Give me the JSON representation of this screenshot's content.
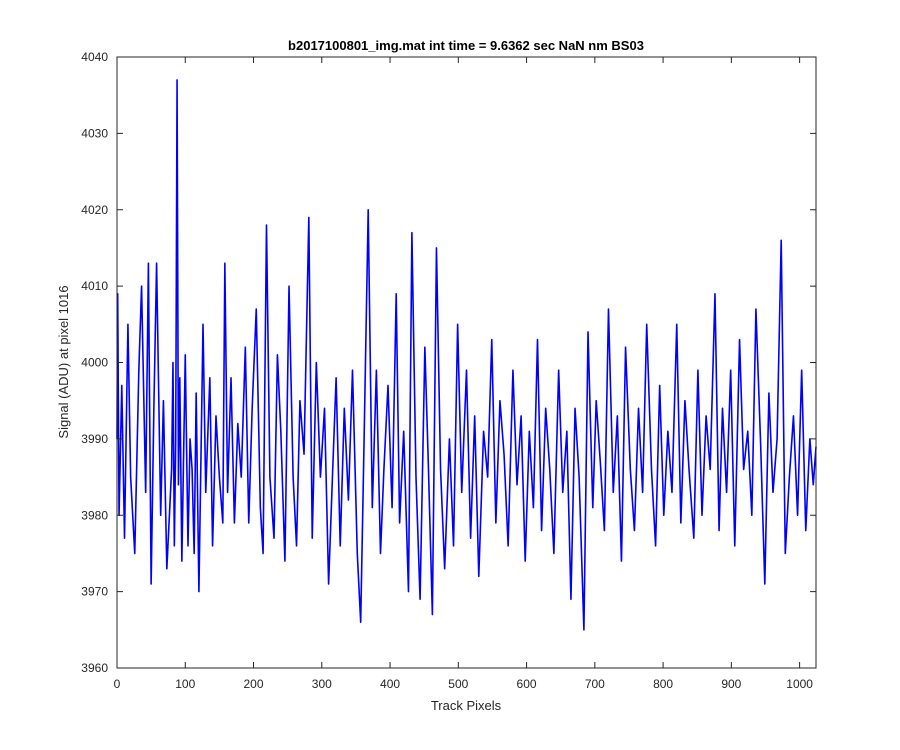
{
  "chart_data": {
    "type": "line",
    "title": "b2017100801_img.mat int time = 9.6362 sec  NaN nm BS03",
    "xlabel": "Track Pixels",
    "ylabel": "Signal (ADU) at pixel 1016",
    "xlim": [
      0,
      1024
    ],
    "ylim": [
      3960,
      4040
    ],
    "xticks": [
      0,
      100,
      200,
      300,
      400,
      500,
      600,
      700,
      800,
      900,
      1000
    ],
    "yticks": [
      3960,
      3970,
      3980,
      3990,
      4000,
      4010,
      4020,
      4030,
      4040
    ],
    "grid": false,
    "legend": "none",
    "series": [
      {
        "color": "#0000ff",
        "x": [
          0,
          1,
          3,
          7,
          11,
          16,
          20,
          26,
          32,
          36,
          42,
          46,
          50,
          54,
          58,
          64,
          68,
          73,
          80,
          82,
          84,
          86,
          88,
          90,
          92,
          95,
          100,
          104,
          107,
          110,
          113,
          116,
          120,
          126,
          130,
          136,
          140,
          145,
          150,
          155,
          158,
          162,
          167,
          172,
          177,
          182,
          188,
          193,
          198,
          204,
          210,
          214,
          219,
          224,
          230,
          235,
          240,
          246,
          252,
          258,
          263,
          268,
          274,
          281,
          286,
          292,
          298,
          304,
          310,
          316,
          321,
          327,
          333,
          339,
          345,
          352,
          357,
          362,
          368,
          374,
          380,
          386,
          391,
          397,
          403,
          409,
          414,
          420,
          427,
          432,
          438,
          444,
          451,
          456,
          462,
          468,
          474,
          480,
          487,
          493,
          499,
          505,
          512,
          518,
          524,
          530,
          537,
          543,
          549,
          555,
          561,
          567,
          573,
          580,
          586,
          592,
          598,
          604,
          610,
          616,
          622,
          628,
          634,
          640,
          647,
          653,
          659,
          665,
          671,
          677,
          684,
          690,
          697,
          702,
          708,
          714,
          720,
          727,
          733,
          739,
          745,
          752,
          758,
          764,
          770,
          776,
          783,
          789,
          795,
          801,
          807,
          813,
          820,
          826,
          832,
          838,
          845,
          851,
          857,
          863,
          869,
          876,
          882,
          887,
          893,
          899,
          905,
          912,
          918,
          924,
          930,
          936,
          943,
          949,
          955,
          961,
          967,
          973,
          979,
          985,
          991,
          997,
          1003,
          1009,
          1015,
          1020,
          1024
        ],
        "y": [
          3990,
          4009,
          3980,
          3997,
          3977,
          4005,
          3985,
          3975,
          3999,
          4010,
          3983,
          4013,
          3971,
          3994,
          4013,
          3980,
          3995,
          3973,
          3986,
          4000,
          3976,
          3990,
          4037,
          3984,
          3998,
          3974,
          4001,
          3976,
          3990,
          3986,
          3975,
          3996,
          3970,
          4005,
          3983,
          3998,
          3976,
          3993,
          3985,
          3979,
          4013,
          3983,
          3998,
          3979,
          3992,
          3985,
          4002,
          3979,
          3994,
          4007,
          3981,
          3975,
          4018,
          3985,
          3977,
          4001,
          3991,
          3974,
          4010,
          3985,
          3976,
          3995,
          3988,
          4019,
          3977,
          4000,
          3985,
          3994,
          3971,
          3986,
          3998,
          3976,
          3994,
          3982,
          3999,
          3975,
          3966,
          3990,
          4020,
          3981,
          3999,
          3975,
          3986,
          3997,
          3981,
          4009,
          3979,
          3991,
          3970,
          4017,
          3985,
          3969,
          4002,
          3987,
          3967,
          4015,
          3986,
          3973,
          3990,
          3976,
          4005,
          3983,
          3999,
          3977,
          3993,
          3972,
          3991,
          3985,
          4003,
          3979,
          3995,
          3988,
          3976,
          3999,
          3984,
          3993,
          3974,
          3991,
          3981,
          4003,
          3978,
          3994,
          3986,
          3975,
          3999,
          3983,
          3991,
          3969,
          3994,
          3985,
          3965,
          4004,
          3981,
          3995,
          3987,
          3978,
          4007,
          3983,
          3993,
          3974,
          4002,
          3986,
          3978,
          3994,
          3983,
          4005,
          3986,
          3976,
          3997,
          3980,
          3991,
          3983,
          4005,
          3979,
          3995,
          3986,
          3977,
          3999,
          3980,
          3993,
          3986,
          4009,
          3978,
          3994,
          3983,
          3999,
          3976,
          4003,
          3986,
          3991,
          3980,
          4007,
          3989,
          3971,
          3996,
          3983,
          3990,
          4016,
          3975,
          3985,
          3993,
          3980,
          3999,
          3978,
          3990,
          3984,
          3989
        ]
      }
    ]
  }
}
